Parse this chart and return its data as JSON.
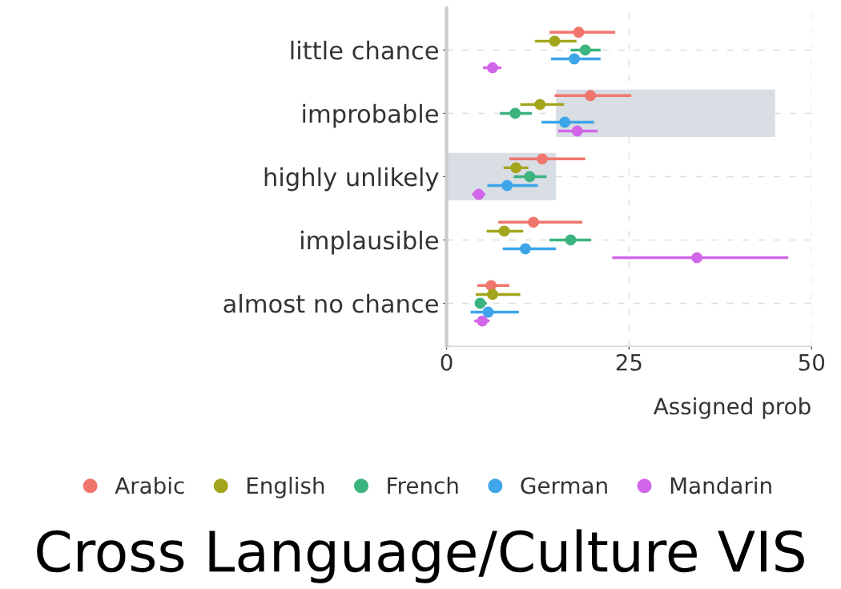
{
  "chart_data": {
    "type": "scatter",
    "orientation": "horizontal",
    "title": "Cross Language/Culture VIS",
    "xlabel": "Assigned prob",
    "categories": [
      "little chance",
      "improbable",
      "highly unlikely",
      "implausible",
      "almost no chance"
    ],
    "xlim": [
      0,
      50
    ],
    "xticks": [
      0,
      25,
      50
    ],
    "grid": true,
    "legend": "bottom",
    "marker": "circle",
    "series": [
      {
        "type": "bar",
        "color": "#d9dde4",
        "base": [
          null,
          15,
          0,
          null,
          null
        ],
        "values": [
          null,
          30,
          15,
          null,
          null
        ]
      },
      {
        "name": "Arabic",
        "color": "#f0766d",
        "values": [
          18.1,
          19.7,
          13.1,
          11.9,
          6.1
        ],
        "errors": [
          [
            14.1,
            23.1
          ],
          [
            14.8,
            25.3
          ],
          [
            8.6,
            19.0
          ],
          [
            7.1,
            18.6
          ],
          [
            4.2,
            8.6
          ]
        ]
      },
      {
        "name": "English",
        "color": "#a3a51c",
        "values": [
          14.8,
          12.8,
          9.5,
          7.9,
          6.3
        ],
        "errors": [
          [
            12.1,
            17.8
          ],
          [
            10.1,
            16.1
          ],
          [
            7.8,
            11.2
          ],
          [
            5.5,
            10.5
          ],
          [
            4.0,
            10.1
          ]
        ]
      },
      {
        "name": "French",
        "color": "#3cb47f",
        "values": [
          19.0,
          9.4,
          11.4,
          17.0,
          4.6
        ],
        "errors": [
          [
            17.0,
            21.1
          ],
          [
            7.3,
            11.7
          ],
          [
            9.2,
            13.7
          ],
          [
            14.1,
            19.8
          ],
          [
            3.9,
            5.5
          ]
        ]
      },
      {
        "name": "German",
        "color": "#3da5e8",
        "values": [
          17.5,
          16.2,
          8.3,
          10.8,
          5.7
        ],
        "errors": [
          [
            14.3,
            21.1
          ],
          [
            13.0,
            20.2
          ],
          [
            5.6,
            12.5
          ],
          [
            7.7,
            15.0
          ],
          [
            3.3,
            9.9
          ]
        ]
      },
      {
        "name": "Mandarin",
        "color": "#d266e8",
        "values": [
          6.3,
          17.9,
          4.4,
          34.3,
          4.9
        ],
        "errors": [
          [
            5.0,
            7.5
          ],
          [
            15.3,
            20.7
          ],
          [
            3.5,
            5.3
          ],
          [
            22.7,
            46.8
          ],
          [
            3.8,
            5.9
          ]
        ]
      }
    ]
  }
}
